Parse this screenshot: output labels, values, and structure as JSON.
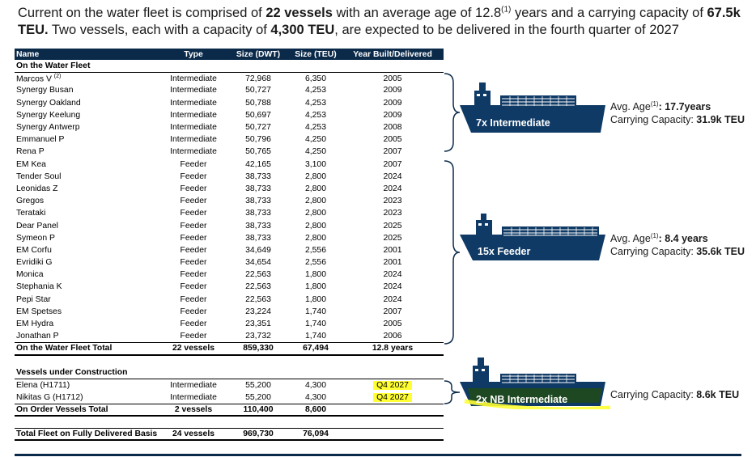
{
  "intro": {
    "p1": "Current on the water fleet is comprised of ",
    "vessels": "22 vessels",
    "p2": " with an average age of 12.8",
    "sup": "(1)",
    "p3": " years and a carrying capacity of ",
    "capacity": "67.5k TEU.",
    "p4": " Two vessels, each with a capacity of ",
    "teu": "4,300 TEU",
    "p5": ", are expected to be delivered in the fourth quarter of 2027"
  },
  "table": {
    "headers": [
      "Name",
      "Type",
      "Size (DWT)",
      "Size (TEU)",
      "Year Built/Delivered"
    ],
    "section_water": "On the Water Fleet",
    "water_rows": [
      {
        "name": "Marcos V",
        "sup": "(2)",
        "type": "Intermediate",
        "dwt": "72,968",
        "teu": "6,350",
        "year": "2005"
      },
      {
        "name": "Synergy Busan",
        "sup": "",
        "type": "Intermediate",
        "dwt": "50,727",
        "teu": "4,253",
        "year": "2009"
      },
      {
        "name": "Synergy Oakland",
        "sup": "",
        "type": "Intermediate",
        "dwt": "50,788",
        "teu": "4,253",
        "year": "2009"
      },
      {
        "name": "Synergy Keelung",
        "sup": "",
        "type": "Intermediate",
        "dwt": "50,697",
        "teu": "4,253",
        "year": "2009"
      },
      {
        "name": "Synergy Antwerp",
        "sup": "",
        "type": "Intermediate",
        "dwt": "50,727",
        "teu": "4,253",
        "year": "2008"
      },
      {
        "name": "Emmanuel P",
        "sup": "",
        "type": "Intermediate",
        "dwt": "50,796",
        "teu": "4,250",
        "year": "2005"
      },
      {
        "name": "Rena P",
        "sup": "",
        "type": "Intermediate",
        "dwt": "50,765",
        "teu": "4,250",
        "year": "2007"
      },
      {
        "name": "EM Kea",
        "sup": "",
        "type": "Feeder",
        "dwt": "42,165",
        "teu": "3,100",
        "year": "2007"
      },
      {
        "name": "Tender Soul",
        "sup": "",
        "type": "Feeder",
        "dwt": "38,733",
        "teu": "2,800",
        "year": "2024"
      },
      {
        "name": "Leonidas Z",
        "sup": "",
        "type": "Feeder",
        "dwt": "38,733",
        "teu": "2,800",
        "year": "2024"
      },
      {
        "name": "Gregos",
        "sup": "",
        "type": "Feeder",
        "dwt": "38,733",
        "teu": "2,800",
        "year": "2023"
      },
      {
        "name": "Terataki",
        "sup": "",
        "type": "Feeder",
        "dwt": "38,733",
        "teu": "2,800",
        "year": "2023"
      },
      {
        "name": "Dear Panel",
        "sup": "",
        "type": "Feeder",
        "dwt": "38,733",
        "teu": "2,800",
        "year": "2025"
      },
      {
        "name": "Symeon P",
        "sup": "",
        "type": "Feeder",
        "dwt": "38,733",
        "teu": "2,800",
        "year": "2025"
      },
      {
        "name": "EM Corfu",
        "sup": "",
        "type": "Feeder",
        "dwt": "34,649",
        "teu": "2,556",
        "year": "2001"
      },
      {
        "name": "Evridiki G",
        "sup": "",
        "type": "Feeder",
        "dwt": "34,654",
        "teu": "2,556",
        "year": "2001"
      },
      {
        "name": "Monica",
        "sup": "",
        "type": "Feeder",
        "dwt": "22,563",
        "teu": "1,800",
        "year": "2024"
      },
      {
        "name": "Stephania K",
        "sup": "",
        "type": "Feeder",
        "dwt": "22,563",
        "teu": "1,800",
        "year": "2024"
      },
      {
        "name": "Pepi Star",
        "sup": "",
        "type": "Feeder",
        "dwt": "22,563",
        "teu": "1,800",
        "year": "2024"
      },
      {
        "name": "EM Spetses",
        "sup": "",
        "type": "Feeder",
        "dwt": "23,224",
        "teu": "1,740",
        "year": "2007"
      },
      {
        "name": "EM Hydra",
        "sup": "",
        "type": "Feeder",
        "dwt": "23,351",
        "teu": "1,740",
        "year": "2005"
      },
      {
        "name": "Jonathan P",
        "sup": "",
        "type": "Feeder",
        "dwt": "23,732",
        "teu": "1,740",
        "year": "2006"
      }
    ],
    "water_total": {
      "name": "On the Water Fleet Total",
      "type": "22 vessels",
      "dwt": "859,330",
      "teu": "67,494",
      "year": "12.8 years"
    },
    "section_construction": "Vessels under Construction",
    "construction_rows": [
      {
        "name": "Elena (H1711)",
        "type": "Intermediate",
        "dwt": "55,200",
        "teu": "4,300",
        "year": "Q4 2027"
      },
      {
        "name": "Nikitas G (H1712)",
        "type": "Intermediate",
        "dwt": "55,200",
        "teu": "4,300",
        "year": "Q4 2027"
      }
    ],
    "order_total": {
      "name": "On Order Vessels Total",
      "type": "2 vessels",
      "dwt": "110,400",
      "teu": "8,600",
      "year": ""
    },
    "fleet_total": {
      "name": "Total Fleet on Fully Delivered Basis",
      "type": "24 vessels",
      "dwt": "969,730",
      "teu": "76,094",
      "year": ""
    }
  },
  "groups": {
    "intermediate": {
      "label": "7x Intermediate",
      "age_label": "Avg. Age",
      "age_sup": "(1)",
      "age_value": ": 17.7years",
      "cap_label": "Carrying Capacity: ",
      "cap_value": "31.9k TEU"
    },
    "feeder": {
      "label": "15x Feeder",
      "age_label": "Avg. Age",
      "age_sup": "(1)",
      "age_value": ": 8.4 years",
      "cap_label": "Carrying Capacity: ",
      "cap_value": "35.6k TEU"
    },
    "newbuild": {
      "label": "2x NB Intermediate",
      "cap_label": "Carrying Capacity: ",
      "cap_value": "8.6k TEU"
    }
  },
  "colors": {
    "navy": "#0b2a4a",
    "ship": "#0f3a66",
    "highlight": "#ffff33"
  }
}
